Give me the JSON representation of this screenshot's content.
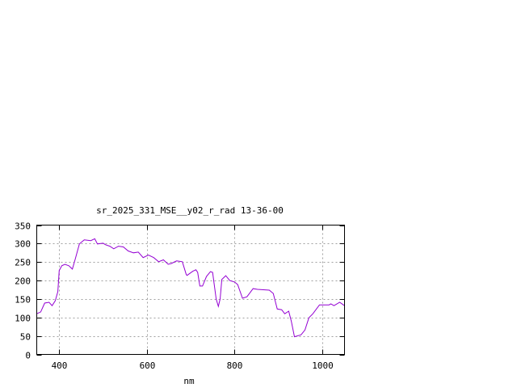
{
  "chart_data": {
    "type": "line",
    "title": "sr_2025_331_MSE__y02_r_rad 13-36-00",
    "xlabel": "nm",
    "ylabel": "",
    "xlim": [
      350,
      1050
    ],
    "ylim": [
      0,
      350
    ],
    "xticks": [
      400,
      600,
      800,
      1000
    ],
    "yticks": [
      0,
      50,
      100,
      150,
      200,
      250,
      300,
      350
    ],
    "grid": true,
    "line_color": "#9400d3",
    "series": [
      {
        "x": [
          350,
          359,
          368,
          378,
          385,
          392,
          398,
          401,
          407,
          414,
          423,
          431,
          438,
          447,
          458,
          473,
          482,
          488,
          501,
          506,
          516,
          525,
          536,
          547,
          558,
          570,
          581,
          592,
          604,
          616,
          627,
          638,
          649,
          656,
          668,
          681,
          690,
          692,
          705,
          712,
          716,
          721,
          727,
          736,
          745,
          750,
          758,
          763,
          767,
          771,
          780,
          789,
          800,
          807,
          818,
          828,
          842,
          852,
          879,
          888,
          897,
          907,
          914,
          923,
          929,
          936,
          951,
          960,
          969,
          978,
          993,
          1002,
          1015,
          1019,
          1026,
          1039,
          1050
        ],
        "y": [
          110,
          115,
          139,
          141,
          132,
          145,
          170,
          227,
          240,
          244,
          240,
          231,
          260,
          299,
          310,
          308,
          313,
          299,
          301,
          297,
          293,
          286,
          293,
          291,
          280,
          275,
          277,
          262,
          269,
          262,
          251,
          256,
          244,
          246,
          253,
          251,
          216,
          214,
          225,
          229,
          222,
          185,
          185,
          211,
          224,
          222,
          150,
          130,
          150,
          203,
          213,
          200,
          196,
          189,
          152,
          156,
          178,
          176,
          174,
          165,
          123,
          121,
          110,
          117,
          90,
          48,
          53,
          66,
          99,
          110,
          134,
          134,
          134,
          137,
          132,
          141,
          132
        ]
      }
    ]
  }
}
